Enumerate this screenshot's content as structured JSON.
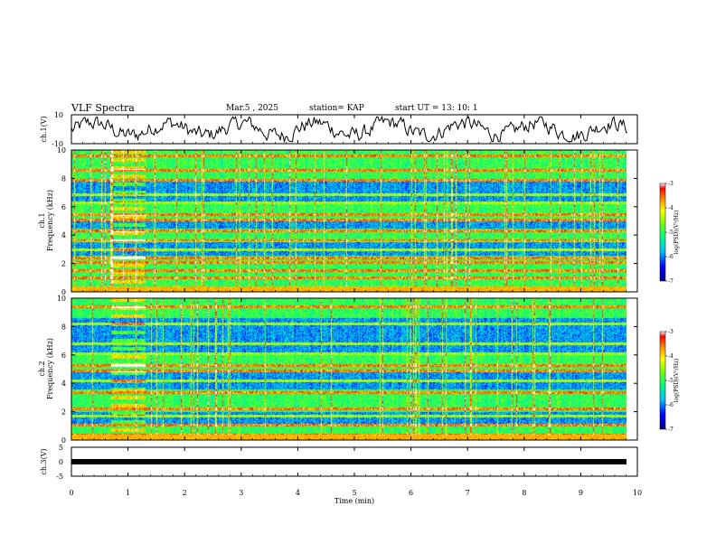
{
  "header": {
    "title": "VLF Spectra",
    "date": "Mar.5 , 2025",
    "station": "station= KAP",
    "start": "start UT = 13: 10: 1"
  },
  "chart_data": [
    {
      "type": "line",
      "name": "ch1-waveform",
      "ylabel": "ch.1(V)",
      "ylim": [
        -10,
        10
      ],
      "yticks": [
        "10",
        "-10"
      ],
      "x_range_min": [
        0,
        9.83
      ],
      "description": "voltage waveform fluctuating roughly between -8 and 8 V"
    },
    {
      "type": "heatmap",
      "name": "ch1-spectrogram",
      "ylabel": "ch.1\nFrequency (kHz)",
      "ylabel_lines": [
        "ch.1",
        "Frequency (kHz)"
      ],
      "ylim": [
        0,
        10
      ],
      "yticks": [
        "0",
        "2",
        "4",
        "6",
        "8",
        "10"
      ],
      "x_range_min": [
        0,
        9.83
      ],
      "colorbar": {
        "label": "log(PSD)(V²/Hz)",
        "range": [
          -7,
          -3
        ],
        "ticks": [
          "-3",
          "-4",
          "-5",
          "-6",
          "-7"
        ]
      },
      "bands_khz": [
        0.3,
        1.0,
        1.5,
        2.1,
        2.4,
        3.0,
        3.6,
        4.3,
        5.1,
        5.5,
        6.3,
        6.9,
        7.9,
        8.6,
        9.6
      ],
      "burst_min": [
        0.7,
        1.3
      ]
    },
    {
      "type": "heatmap",
      "name": "ch2-spectrogram",
      "ylabel": "ch.2\nFrequency (kHz)",
      "ylabel_lines": [
        "ch.2",
        "Frequency (kHz)"
      ],
      "ylim": [
        0,
        10
      ],
      "yticks": [
        "0",
        "2",
        "4",
        "6",
        "8",
        "10"
      ],
      "x_range_min": [
        0,
        9.83
      ],
      "colorbar": {
        "label": "log(PSD)(V²/Hz)",
        "range": [
          -7,
          -3
        ],
        "ticks": [
          "-3",
          "-4",
          "-5",
          "-6",
          "-7"
        ]
      },
      "bands_khz": [
        0.4,
        1.1,
        1.7,
        2.2,
        3.4,
        4.2,
        4.9,
        5.3,
        6.1,
        6.8,
        8.2,
        9.4
      ],
      "burst_min": [
        0.7,
        1.3
      ]
    },
    {
      "type": "line",
      "name": "ch3-waveform",
      "ylabel": "ch.3(V)",
      "ylim": [
        -5,
        5
      ],
      "yticks": [
        "5",
        "0",
        "-5"
      ],
      "x": [
        0,
        9.83
      ],
      "y": [
        0,
        0
      ],
      "description": "flat thick black line near 0 V"
    }
  ],
  "xaxis": {
    "label": "Time (min)",
    "ticks": [
      "0",
      "1",
      "2",
      "3",
      "4",
      "5",
      "6",
      "7",
      "8",
      "9",
      "10"
    ],
    "range": [
      0,
      10
    ]
  },
  "colors": {
    "scale": [
      "#00008b",
      "#0000ff",
      "#00bfff",
      "#00ff7f",
      "#7fff00",
      "#ffff00",
      "#ff8000",
      "#ff0000",
      "#ffffff"
    ]
  }
}
